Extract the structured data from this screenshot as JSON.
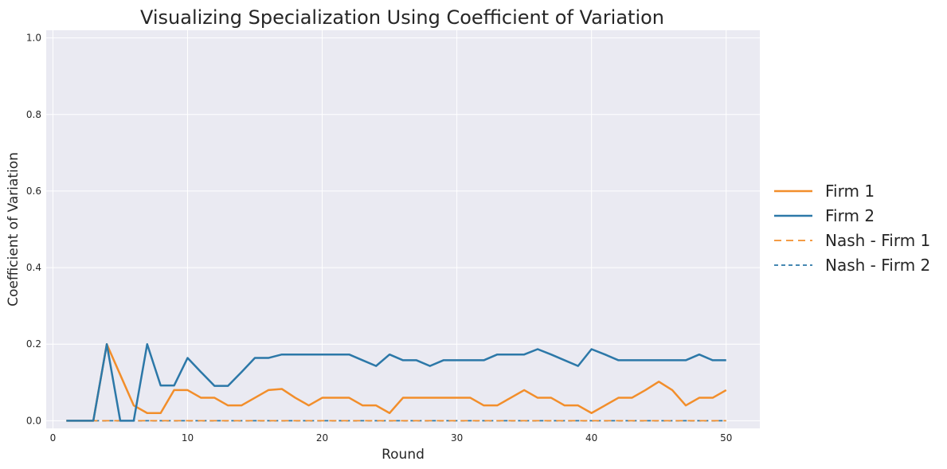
{
  "chart_data": {
    "type": "line",
    "title": "Visualizing Specialization Using Coefficient of Variation",
    "xlabel": "Round",
    "ylabel": "Coefficient of Variation",
    "xlim": [
      -0.5,
      52.5
    ],
    "ylim": [
      -0.02,
      1.02
    ],
    "xticks": [
      0,
      10,
      20,
      30,
      40,
      50
    ],
    "yticks": [
      0.0,
      0.2,
      0.4,
      0.6,
      0.8,
      1.0
    ],
    "xtick_labels": [
      "0",
      "10",
      "20",
      "30",
      "40",
      "50"
    ],
    "ytick_labels": [
      "0.0",
      "0.2",
      "0.4",
      "0.6",
      "0.8",
      "1.0"
    ],
    "grid": true,
    "legend_position": "right",
    "x": [
      1,
      2,
      3,
      4,
      5,
      6,
      7,
      8,
      9,
      10,
      11,
      12,
      13,
      14,
      15,
      16,
      17,
      18,
      19,
      20,
      21,
      22,
      23,
      24,
      25,
      26,
      27,
      28,
      29,
      30,
      31,
      32,
      33,
      34,
      35,
      36,
      37,
      38,
      39,
      40,
      41,
      42,
      43,
      44,
      45,
      46,
      47,
      48,
      49,
      50
    ],
    "series": [
      {
        "name": "Firm 1",
        "style": "solid",
        "color": "#f28e2b",
        "values": [
          0.0,
          0.0,
          0.0,
          0.2,
          0.12,
          0.04,
          0.02,
          0.02,
          0.08,
          0.08,
          0.06,
          0.06,
          0.04,
          0.04,
          0.06,
          0.08,
          0.083,
          0.06,
          0.04,
          0.06,
          0.06,
          0.06,
          0.04,
          0.04,
          0.02,
          0.06,
          0.06,
          0.06,
          0.06,
          0.06,
          0.06,
          0.04,
          0.04,
          0.06,
          0.08,
          0.06,
          0.06,
          0.04,
          0.04,
          0.02,
          0.04,
          0.06,
          0.06,
          0.08,
          0.102,
          0.08,
          0.04,
          0.06,
          0.06,
          0.08
        ]
      },
      {
        "name": "Firm 2",
        "style": "solid",
        "color": "#2c78a8",
        "values": [
          0.0,
          0.0,
          0.0,
          0.2,
          0.0,
          0.0,
          0.2,
          0.092,
          0.092,
          0.164,
          0.127,
          0.091,
          0.091,
          0.127,
          0.164,
          0.164,
          0.173,
          0.173,
          0.173,
          0.173,
          0.173,
          0.173,
          0.158,
          0.143,
          0.173,
          0.158,
          0.158,
          0.143,
          0.158,
          0.158,
          0.158,
          0.158,
          0.173,
          0.173,
          0.173,
          0.187,
          0.173,
          0.158,
          0.143,
          0.187,
          0.173,
          0.158,
          0.158,
          0.158,
          0.158,
          0.158,
          0.158,
          0.173,
          0.158,
          0.158
        ]
      },
      {
        "name": "Nash - Firm 1",
        "style": "dashed",
        "color": "#f28e2b",
        "values": [
          0,
          0,
          0,
          0,
          0,
          0,
          0,
          0,
          0,
          0,
          0,
          0,
          0,
          0,
          0,
          0,
          0,
          0,
          0,
          0,
          0,
          0,
          0,
          0,
          0,
          0,
          0,
          0,
          0,
          0,
          0,
          0,
          0,
          0,
          0,
          0,
          0,
          0,
          0,
          0,
          0,
          0,
          0,
          0,
          0,
          0,
          0,
          0,
          0,
          0
        ]
      },
      {
        "name": "Nash - Firm 2",
        "style": "dotted",
        "color": "#2c78a8",
        "values": [
          0,
          0,
          0,
          0,
          0,
          0,
          0,
          0,
          0,
          0,
          0,
          0,
          0,
          0,
          0,
          0,
          0,
          0,
          0,
          0,
          0,
          0,
          0,
          0,
          0,
          0,
          0,
          0,
          0,
          0,
          0,
          0,
          0,
          0,
          0,
          0,
          0,
          0,
          0,
          0,
          0,
          0,
          0,
          0,
          0,
          0,
          0,
          0,
          0,
          0
        ]
      }
    ],
    "colors": {
      "plot_background": "#eaeaf2",
      "grid": "#ffffff",
      "text": "#262626"
    }
  }
}
